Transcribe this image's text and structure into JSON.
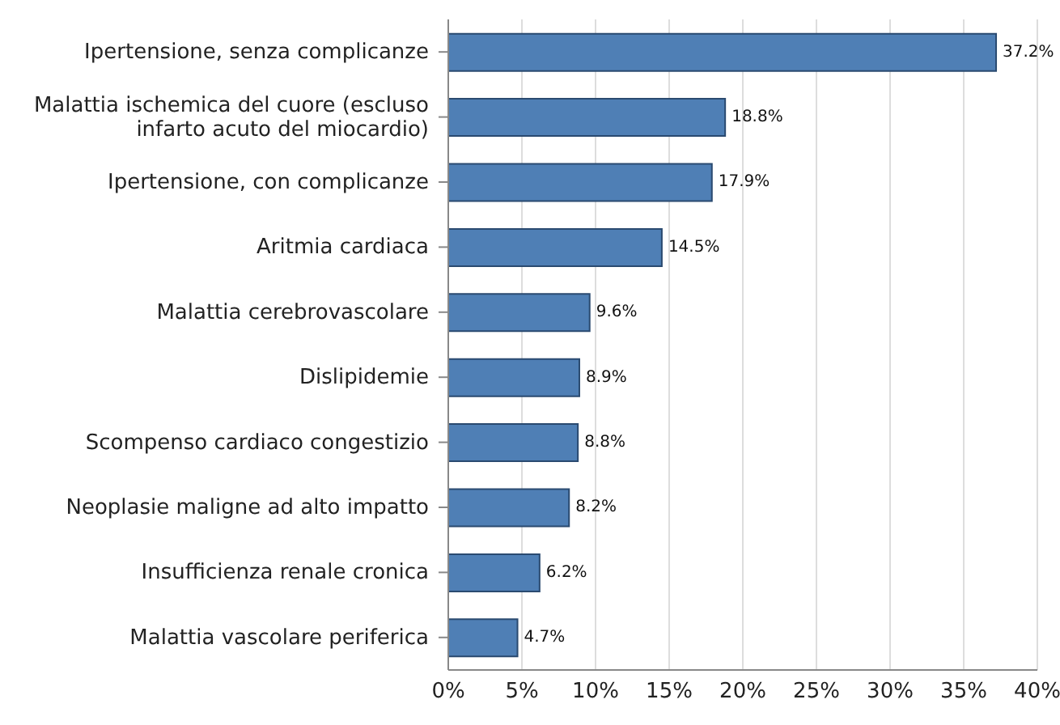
{
  "chart_data": {
    "type": "bar",
    "orientation": "horizontal",
    "categories": [
      "Ipertensione, senza complicanze",
      "Malattia ischemica del cuore (escluso infarto acuto del miocardio)",
      "Ipertensione, con complicanze",
      "Aritmia cardiaca",
      "Malattia cerebrovascolare",
      "Dislipidemie",
      "Scompenso cardiaco congestizio",
      "Neoplasie maligne ad alto impatto",
      "Insufficienza renale cronica",
      "Malattia vascolare periferica"
    ],
    "values": [
      37.2,
      18.8,
      17.9,
      14.5,
      9.6,
      8.9,
      8.8,
      8.2,
      6.2,
      4.7
    ],
    "value_labels": [
      "37.2%",
      "18.8%",
      "17.9%",
      "14.5%",
      "9.6%",
      "8.9%",
      "8.8%",
      "8.2%",
      "6.2%",
      "4.7%"
    ],
    "color": "#4f7fb5",
    "xlim": [
      0,
      40
    ],
    "xticks": [
      {
        "value": 0,
        "label": "0%"
      },
      {
        "value": 5,
        "label": "5%"
      },
      {
        "value": 10,
        "label": "10%"
      },
      {
        "value": 15,
        "label": "15%"
      },
      {
        "value": 20,
        "label": "20%"
      },
      {
        "value": 25,
        "label": "25%"
      },
      {
        "value": 30,
        "label": "30%"
      },
      {
        "value": 35,
        "label": "35%"
      },
      {
        "value": 40,
        "label": "40%"
      }
    ],
    "grid": "x"
  }
}
